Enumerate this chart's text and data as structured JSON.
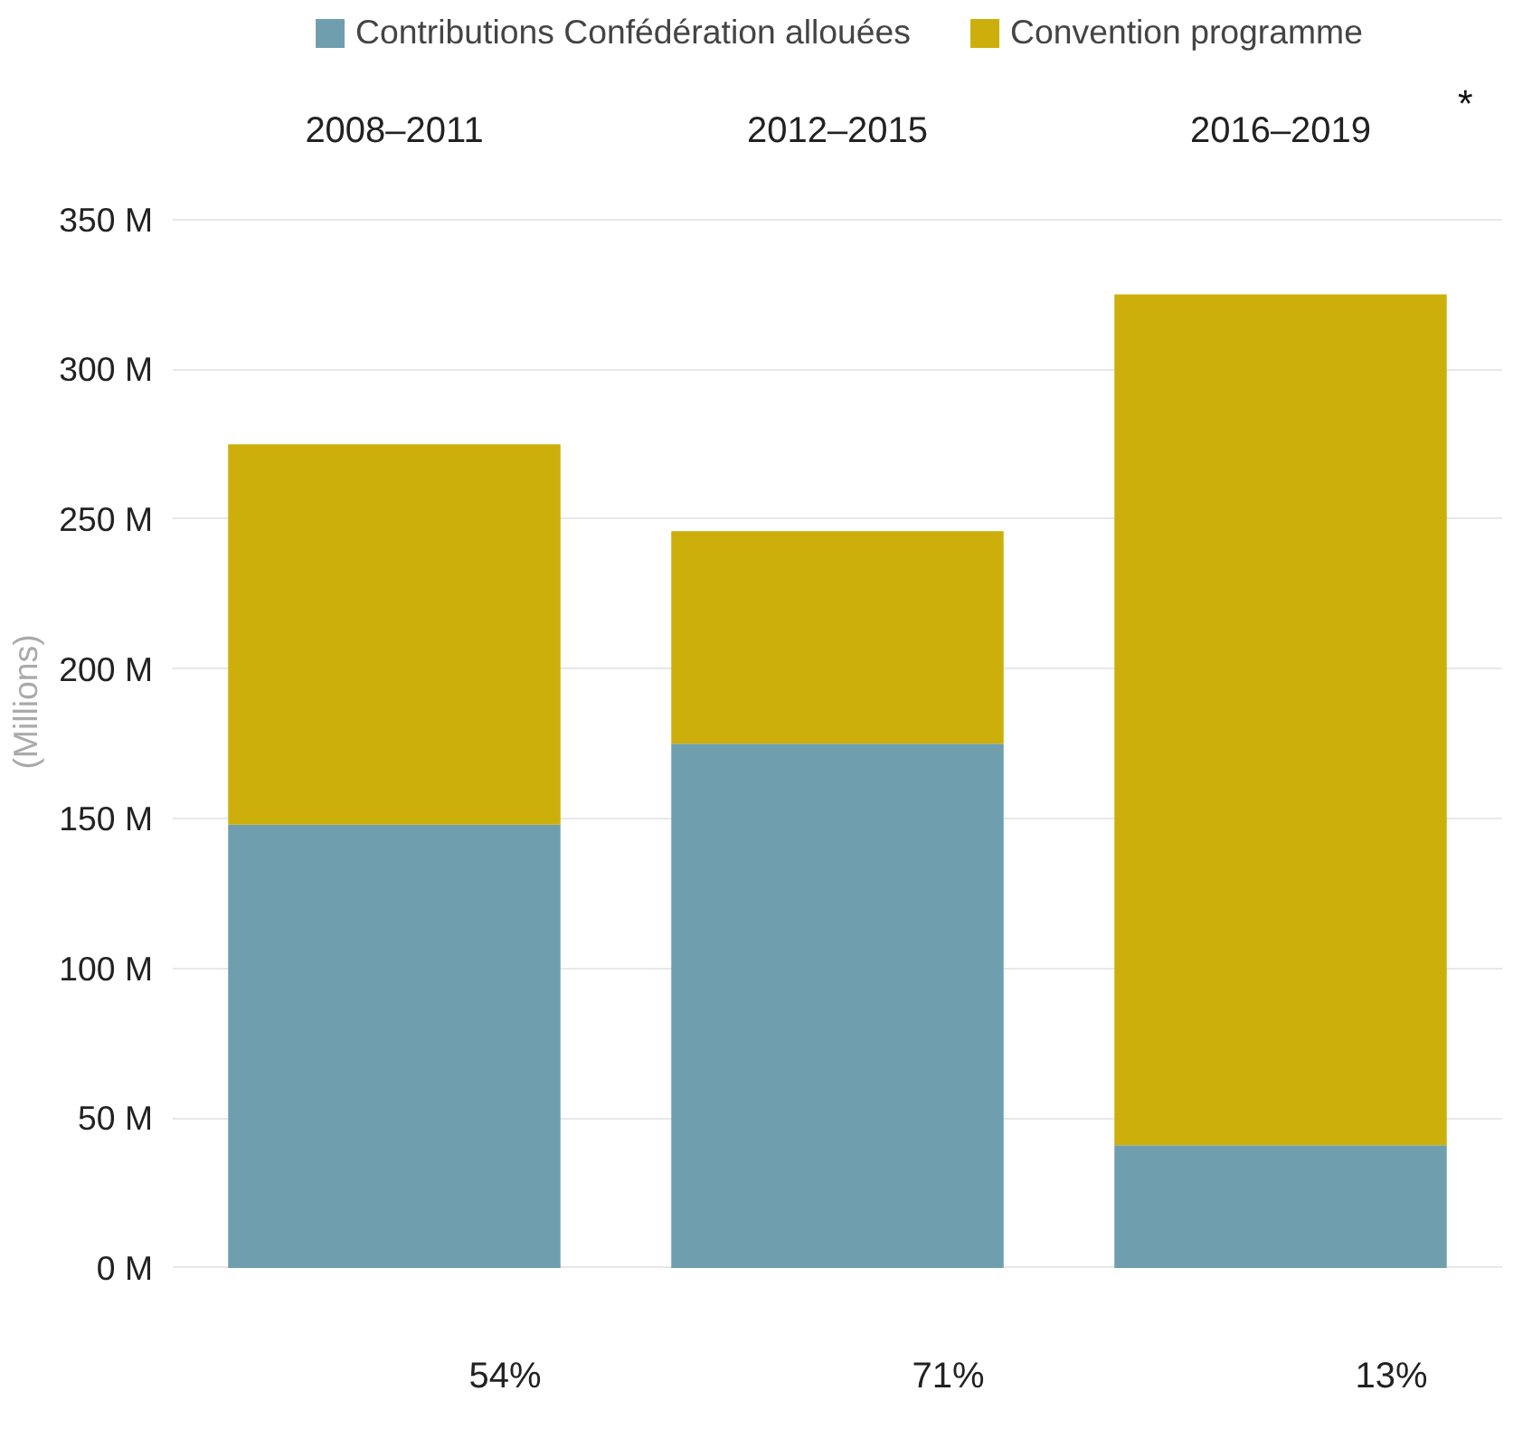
{
  "chart_data": {
    "type": "bar",
    "stacked": true,
    "categories": [
      "2008–2011",
      "2012–2015",
      "2016–2019"
    ],
    "series": [
      {
        "name": "Contributions Confédération allouées",
        "color": "#6f9faf",
        "values": [
          148,
          175,
          41
        ]
      },
      {
        "name": "Convention programme",
        "color": "#cdaf0c",
        "values": [
          127,
          71,
          284
        ]
      }
    ],
    "ylabel": "(Millions)",
    "ylim": [
      0,
      350
    ],
    "yticks": [
      {
        "value": 0,
        "label": "0 M"
      },
      {
        "value": 50,
        "label": "50 M"
      },
      {
        "value": 100,
        "label": "100 M"
      },
      {
        "value": 150,
        "label": "150 M"
      },
      {
        "value": 200,
        "label": "200 M"
      },
      {
        "value": 250,
        "label": "250 M"
      },
      {
        "value": 300,
        "label": "300 M"
      },
      {
        "value": 350,
        "label": "350 M"
      }
    ],
    "grid": "y",
    "legend": "top",
    "annotations": [
      "*",
      "54%",
      "71%",
      "13%"
    ]
  }
}
